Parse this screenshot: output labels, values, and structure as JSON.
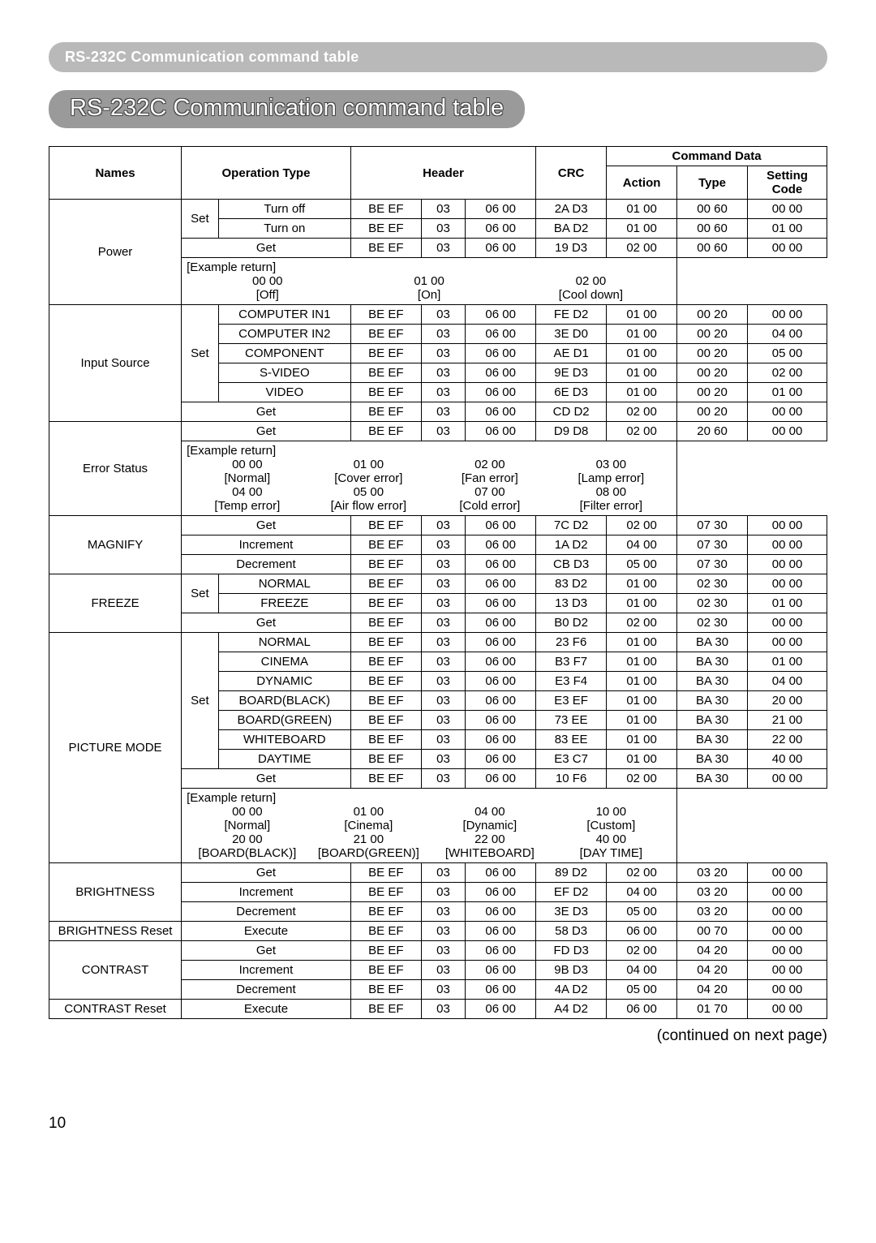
{
  "header_small": "RS-232C Communication command table",
  "header_large": "RS-232C Communication command table",
  "columns": {
    "names": "Names",
    "operation": "Operation Type",
    "header": "Header",
    "crc": "CRC",
    "command_data": "Command Data",
    "action": "Action",
    "type": "Type",
    "setting": "Setting Code"
  },
  "rows": [
    {
      "name": "Power",
      "op1": "Set",
      "op2": "Turn off",
      "h1": "BE  EF",
      "h2": "03",
      "h3": "06  00",
      "crc": "2A D3",
      "a": "01  00",
      "t": "00  60",
      "s": "00  00"
    },
    {
      "name": "",
      "op1": "",
      "op2": "Turn on",
      "h1": "BE  EF",
      "h2": "03",
      "h3": "06  00",
      "crc": "BA D2",
      "a": "01  00",
      "t": "00  60",
      "s": "01  00"
    },
    {
      "name": "",
      "op1": "",
      "op2_span": "Get",
      "h1": "BE  EF",
      "h2": "03",
      "h3": "06  00",
      "crc": "19  D3",
      "a": "02  00",
      "t": "00  60",
      "s": "00  00"
    },
    {
      "example": {
        "title": "[Example return]",
        "items": [
          {
            "v": "00  00",
            "l": "[Off]"
          },
          {
            "v": "01  00",
            "l": "[On]"
          },
          {
            "v": "02  00",
            "l": "[Cool down]"
          }
        ]
      }
    },
    {
      "name": "Input Source",
      "op1": "Set",
      "op2": "COMPUTER IN1",
      "h1": "BE  EF",
      "h2": "03",
      "h3": "06  00",
      "crc": "FE  D2",
      "a": "01  00",
      "t": "00  20",
      "s": "00  00"
    },
    {
      "name": "",
      "op1": "",
      "op2": "COMPUTER IN2",
      "h1": "BE  EF",
      "h2": "03",
      "h3": "06  00",
      "crc": "3E  D0",
      "a": "01  00",
      "t": "00  20",
      "s": "04  00"
    },
    {
      "name": "",
      "op1": "",
      "op2": "COMPONENT",
      "h1": "BE  EF",
      "h2": "03",
      "h3": "06  00",
      "crc": "AE  D1",
      "a": "01  00",
      "t": "00  20",
      "s": "05  00"
    },
    {
      "name": "",
      "op1": "",
      "op2": "S-VIDEO",
      "h1": "BE  EF",
      "h2": "03",
      "h3": "06  00",
      "crc": "9E  D3",
      "a": "01  00",
      "t": "00  20",
      "s": "02  00"
    },
    {
      "name": "",
      "op1": "",
      "op2": "VIDEO",
      "h1": "BE  EF",
      "h2": "03",
      "h3": "06  00",
      "crc": "6E  D3",
      "a": "01  00",
      "t": "00  20",
      "s": "01  00"
    },
    {
      "name": "",
      "op1": "",
      "op2_span": "Get",
      "h1": "BE  EF",
      "h2": "03",
      "h3": "06  00",
      "crc": "CD D2",
      "a": "02  00",
      "t": "00  20",
      "s": "00  00"
    },
    {
      "name": "Error Status",
      "op1": "",
      "op2_span": "Get",
      "h1": "BE  EF",
      "h2": "03",
      "h3": "06  00",
      "crc": "D9 D8",
      "a": "02  00",
      "t": "20  60",
      "s": "00  00"
    },
    {
      "example": {
        "title": "[Example return]",
        "rows": [
          [
            {
              "v": "00  00",
              "l": "[Normal]"
            },
            {
              "v": "01  00",
              "l": "[Cover error]"
            },
            {
              "v": "02  00",
              "l": "[Fan error]"
            },
            {
              "v": "03  00",
              "l": "[Lamp error]"
            }
          ],
          [
            {
              "v": "04  00",
              "l": "[Temp error]"
            },
            {
              "v": "05  00",
              "l": "[Air flow error]"
            },
            {
              "v": "07  00",
              "l": "[Cold error]"
            },
            {
              "v": "08  00",
              "l": "[Filter error]"
            }
          ]
        ]
      }
    },
    {
      "name": "MAGNIFY",
      "op1": "",
      "op2_span": "Get",
      "h1": "BE  EF",
      "h2": "03",
      "h3": "06  00",
      "crc": "7C D2",
      "a": "02  00",
      "t": "07  30",
      "s": "00  00"
    },
    {
      "name": "",
      "op1": "",
      "op2_span": "Increment",
      "h1": "BE  EF",
      "h2": "03",
      "h3": "06  00",
      "crc": "1A  D2",
      "a": "04  00",
      "t": "07  30",
      "s": "00  00"
    },
    {
      "name": "",
      "op1": "",
      "op2_span": "Decrement",
      "h1": "BE  EF",
      "h2": "03",
      "h3": "06  00",
      "crc": "CB D3",
      "a": "05  00",
      "t": "07  30",
      "s": "00  00"
    },
    {
      "name": "FREEZE",
      "op1": "Set",
      "op2": "NORMAL",
      "h1": "BE  EF",
      "h2": "03",
      "h3": "06  00",
      "crc": "83  D2",
      "a": "01  00",
      "t": "02  30",
      "s": "00  00"
    },
    {
      "name": "",
      "op1": "",
      "op2": "FREEZE",
      "h1": "BE  EF",
      "h2": "03",
      "h3": "06  00",
      "crc": "13  D3",
      "a": "01  00",
      "t": "02  30",
      "s": "01  00"
    },
    {
      "name": "",
      "op1": "",
      "op2_span": "Get",
      "h1": "BE  EF",
      "h2": "03",
      "h3": "06  00",
      "crc": "B0 D2",
      "a": "02  00",
      "t": "02  30",
      "s": "00  00"
    },
    {
      "name": "PICTURE MODE",
      "op1": "Set",
      "op2": "NORMAL",
      "h1": "BE  EF",
      "h2": "03",
      "h3": "06  00",
      "crc": "23  F6",
      "a": "01  00",
      "t": "BA  30",
      "s": "00  00"
    },
    {
      "name": "",
      "op1": "",
      "op2": "CINEMA",
      "h1": "BE  EF",
      "h2": "03",
      "h3": "06  00",
      "crc": "B3  F7",
      "a": "01  00",
      "t": "BA  30",
      "s": "01  00"
    },
    {
      "name": "",
      "op1": "",
      "op2": "DYNAMIC",
      "h1": "BE  EF",
      "h2": "03",
      "h3": "06  00",
      "crc": "E3  F4",
      "a": "01  00",
      "t": "BA  30",
      "s": "04  00"
    },
    {
      "name": "",
      "op1": "",
      "op2": "BOARD(BLACK)",
      "h1": "BE  EF",
      "h2": "03",
      "h3": "06  00",
      "crc": "E3  EF",
      "a": "01  00",
      "t": "BA  30",
      "s": "20  00"
    },
    {
      "name": "",
      "op1": "",
      "op2": "BOARD(GREEN)",
      "h1": "BE  EF",
      "h2": "03",
      "h3": "06  00",
      "crc": "73  EE",
      "a": "01  00",
      "t": "BA  30",
      "s": "21  00"
    },
    {
      "name": "",
      "op1": "",
      "op2": "WHITEBOARD",
      "h1": "BE  EF",
      "h2": "03",
      "h3": "06  00",
      "crc": "83  EE",
      "a": "01  00",
      "t": "BA  30",
      "s": "22  00"
    },
    {
      "name": "",
      "op1": "",
      "op2": "DAYTIME",
      "h1": "BE  EF",
      "h2": "03",
      "h3": "06  00",
      "crc": "E3  C7",
      "a": "01  00",
      "t": "BA  30",
      "s": "40  00"
    },
    {
      "name": "",
      "op1": "",
      "op2_span": "Get",
      "h1": "BE  EF",
      "h2": "03",
      "h3": "06  00",
      "crc": "10  F6",
      "a": "02  00",
      "t": "BA  30",
      "s": "00  00"
    },
    {
      "example": {
        "title": "[Example return]",
        "rows": [
          [
            {
              "v": "00  00",
              "l": "[Normal]"
            },
            {
              "v": "01  00",
              "l": "[Cinema]"
            },
            {
              "v": "04  00",
              "l": "[Dynamic]"
            },
            {
              "v": "10  00",
              "l": "[Custom]"
            }
          ],
          [
            {
              "v": "20  00",
              "l": "[BOARD(BLACK)]"
            },
            {
              "v": "21  00",
              "l": "[BOARD(GREEN)]"
            },
            {
              "v": "22  00",
              "l": "[WHITEBOARD]"
            },
            {
              "v": "40  00",
              "l": "[DAY TIME]"
            }
          ]
        ]
      }
    },
    {
      "name": "BRIGHTNESS",
      "op1": "",
      "op2_span": "Get",
      "h1": "BE  EF",
      "h2": "03",
      "h3": "06  00",
      "crc": "89 D2",
      "a": "02  00",
      "t": "03  20",
      "s": "00  00"
    },
    {
      "name": "",
      "op1": "",
      "op2_span": "Increment",
      "h1": "BE  EF",
      "h2": "03",
      "h3": "06  00",
      "crc": "EF D2",
      "a": "04  00",
      "t": "03  20",
      "s": "00  00"
    },
    {
      "name": "",
      "op1": "",
      "op2_span": "Decrement",
      "h1": "BE  EF",
      "h2": "03",
      "h3": "06  00",
      "crc": "3E D3",
      "a": "05  00",
      "t": "03  20",
      "s": "00  00"
    },
    {
      "name": "BRIGHTNESS Reset",
      "op1": "",
      "op2_span": "Execute",
      "h1": "BE  EF",
      "h2": "03",
      "h3": "06  00",
      "crc": "58 D3",
      "a": "06  00",
      "t": "00  70",
      "s": "00  00"
    },
    {
      "name": "CONTRAST",
      "op1": "",
      "op2_span": "Get",
      "h1": "BE  EF",
      "h2": "03",
      "h3": "06  00",
      "crc": "FD D3",
      "a": "02  00",
      "t": "04  20",
      "s": "00  00"
    },
    {
      "name": "",
      "op1": "",
      "op2_span": "Increment",
      "h1": "BE  EF",
      "h2": "03",
      "h3": "06  00",
      "crc": "9B D3",
      "a": "04  00",
      "t": "04  20",
      "s": "00  00"
    },
    {
      "name": "",
      "op1": "",
      "op2_span": "Decrement",
      "h1": "BE  EF",
      "h2": "03",
      "h3": "06  00",
      "crc": "4A D2",
      "a": "05  00",
      "t": "04  20",
      "s": "00  00"
    },
    {
      "name": "CONTRAST Reset",
      "op1": "",
      "op2_span": "Execute",
      "h1": "BE  EF",
      "h2": "03",
      "h3": "06  00",
      "crc": "A4 D2",
      "a": "06  00",
      "t": "01  70",
      "s": "00  00"
    }
  ],
  "continued": "(continued on next page)",
  "page_number": "10"
}
